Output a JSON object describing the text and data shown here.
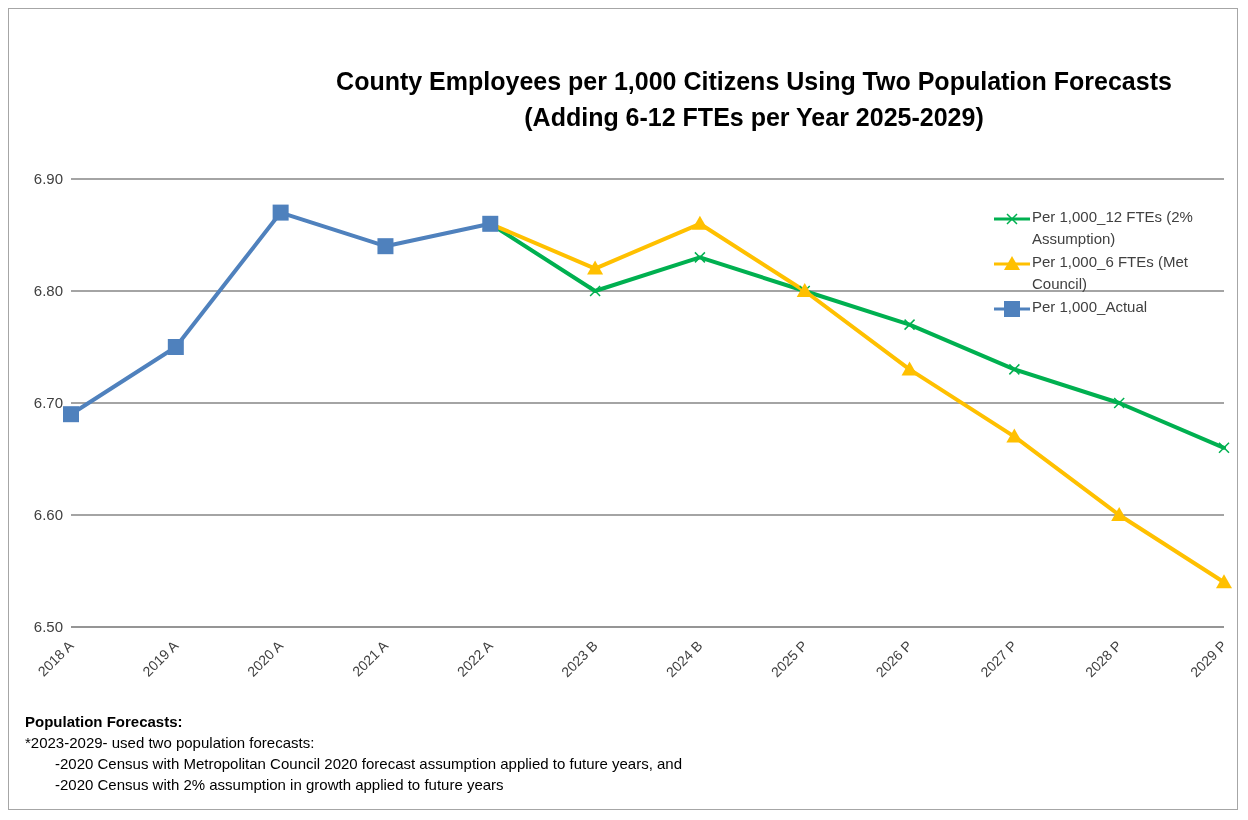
{
  "chart_data": {
    "type": "line",
    "title": "County Employees per 1,000 Citizens Using Two Population Forecasts",
    "subtitle": "(Adding 6-12 FTEs per Year 2025-2029)",
    "categories": [
      "2018 A",
      "2019 A",
      "2020 A",
      "2021 A",
      "2022 A",
      "2023 B",
      "2024 B",
      "2025 P",
      "2026 P",
      "2027 P",
      "2028 P",
      "2029 P"
    ],
    "series": [
      {
        "name": "Per 1,000_12 FTEs (2% Assumption)",
        "color": "#00b050",
        "marker": "cross",
        "values": [
          null,
          null,
          null,
          null,
          6.86,
          6.8,
          6.83,
          6.8,
          6.77,
          6.73,
          6.7,
          6.66
        ]
      },
      {
        "name": "Per 1,000_6 FTEs (Met Council)",
        "color": "#ffc000",
        "marker": "triangle",
        "values": [
          null,
          null,
          null,
          null,
          6.86,
          6.82,
          6.86,
          6.8,
          6.73,
          6.67,
          6.6,
          6.54
        ]
      },
      {
        "name": "Per 1,000_Actual",
        "color": "#4f81bd",
        "marker": "square",
        "values": [
          6.69,
          6.75,
          6.87,
          6.84,
          6.86,
          null,
          null,
          null,
          null,
          null,
          null,
          null
        ]
      }
    ],
    "ylim": [
      6.5,
      6.9
    ],
    "yticks": [
      {
        "value": 6.5,
        "label": "6.50"
      },
      {
        "value": 6.6,
        "label": "6.60"
      },
      {
        "value": 6.7,
        "label": "6.70"
      },
      {
        "value": 6.8,
        "label": "6.80"
      },
      {
        "value": 6.9,
        "label": "6.90"
      }
    ],
    "grid": "y",
    "legend": "top right",
    "line_style": "solid",
    "annotations": [
      "Population Forecasts:",
      "*2023-2029- used two population forecasts:",
      "-2020 Census with Metropolitan Council 2020 forecast assumption applied to future years, and",
      "-2020 Census with 2% assumption in growth applied to future years"
    ]
  }
}
